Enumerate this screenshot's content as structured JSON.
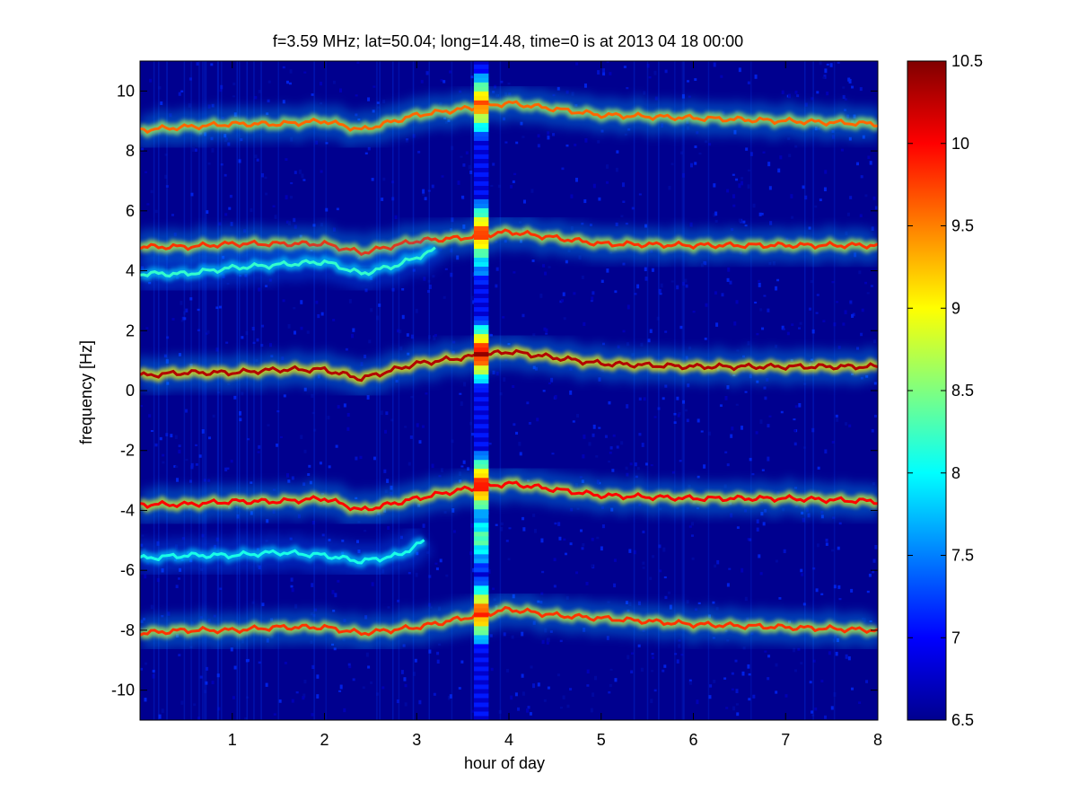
{
  "chart_data": {
    "type": "heatmap",
    "title": "f=3.59 MHz;  lat=50.04; long=14.48, time=0 is at 2013 04 18 00:00",
    "xlabel": "hour of day",
    "ylabel": "frequency [Hz]",
    "xlim": [
      0,
      8
    ],
    "ylim": [
      -11,
      11
    ],
    "x_ticks": [
      1,
      2,
      3,
      4,
      5,
      6,
      7,
      8
    ],
    "x_tick_labels": [
      "1",
      "2",
      "3",
      "4",
      "5",
      "6",
      "7",
      "8"
    ],
    "y_ticks": [
      10,
      8,
      6,
      4,
      2,
      0,
      -2,
      -4,
      -6,
      -8,
      -10
    ],
    "y_tick_labels": [
      "10",
      "8",
      "6",
      "4",
      "2",
      "0",
      "-2",
      "-4",
      "-6",
      "-8",
      "-10"
    ],
    "colorbar": {
      "range": [
        6.5,
        10.5
      ],
      "ticks": [
        10.5,
        10,
        9.5,
        9,
        8.5,
        8,
        7.5,
        7,
        6.5
      ],
      "tick_labels": [
        "10.5",
        "10",
        "9.5",
        "9",
        "8.5",
        "8",
        "7.5",
        "7",
        "6.5"
      ],
      "colormap": "jet"
    },
    "grid": false,
    "gap_hours": [
      3.62,
      3.78
    ],
    "series": [
      {
        "x": [
          0,
          0.5,
          1,
          1.5,
          2,
          2.4,
          3,
          3.5,
          4,
          4.5,
          5,
          6,
          7,
          8
        ],
        "y": [
          8.7,
          8.8,
          8.9,
          8.9,
          9.0,
          8.7,
          9.2,
          9.4,
          9.6,
          9.4,
          9.2,
          9.1,
          9.0,
          8.9
        ],
        "intensity": 9.6
      },
      {
        "x": [
          0,
          0.5,
          1,
          1.5,
          2,
          2.4,
          3,
          3.5,
          4,
          4.5,
          5,
          6,
          7,
          8
        ],
        "y": [
          4.8,
          4.8,
          4.9,
          4.9,
          4.9,
          4.6,
          5.0,
          5.1,
          5.3,
          5.1,
          4.9,
          4.85,
          4.85,
          4.85
        ],
        "intensity": 9.8
      },
      {
        "x": [
          0,
          0.5,
          1,
          1.5,
          2,
          2.4,
          2.8,
          3.2
        ],
        "y": [
          3.9,
          3.9,
          4.1,
          4.2,
          4.3,
          3.9,
          4.2,
          4.7
        ],
        "intensity": 8.2
      },
      {
        "x": [
          0,
          0.5,
          1,
          1.5,
          2,
          2.4,
          3,
          3.5,
          4,
          4.5,
          5,
          6,
          7,
          8
        ],
        "y": [
          0.5,
          0.6,
          0.6,
          0.7,
          0.7,
          0.4,
          0.9,
          1.1,
          1.3,
          1.1,
          0.9,
          0.8,
          0.8,
          0.8
        ],
        "intensity": 10.3
      },
      {
        "x": [
          0,
          0.5,
          1,
          1.5,
          2,
          2.4,
          3,
          3.5,
          4,
          4.5,
          5,
          6,
          7,
          8
        ],
        "y": [
          -3.8,
          -3.8,
          -3.7,
          -3.7,
          -3.6,
          -4.0,
          -3.6,
          -3.3,
          -3.1,
          -3.3,
          -3.5,
          -3.6,
          -3.6,
          -3.7
        ],
        "intensity": 10.0
      },
      {
        "x": [
          0,
          0.5,
          1,
          1.5,
          2,
          2.4,
          2.8,
          3.1
        ],
        "y": [
          -5.6,
          -5.5,
          -5.5,
          -5.4,
          -5.5,
          -5.7,
          -5.5,
          -5.0
        ],
        "intensity": 8.1
      },
      {
        "x": [
          0,
          0.5,
          1,
          1.5,
          2,
          2.4,
          3,
          3.5,
          4,
          4.5,
          5,
          6,
          7,
          8
        ],
        "y": [
          -8.1,
          -8.0,
          -8.0,
          -7.9,
          -7.9,
          -8.1,
          -7.9,
          -7.6,
          -7.3,
          -7.5,
          -7.6,
          -7.8,
          -7.9,
          -8.0
        ],
        "intensity": 9.8
      }
    ]
  }
}
